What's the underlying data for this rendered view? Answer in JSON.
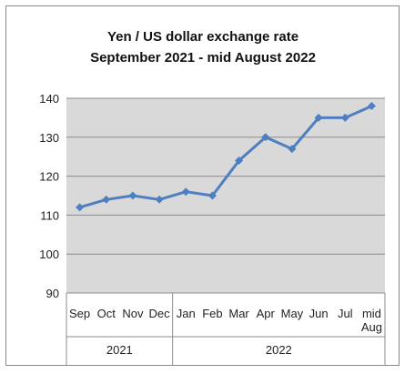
{
  "chart_data": {
    "type": "line",
    "title": "Yen / US dollar exchange rate",
    "subtitle": "September  2021 - mid August 2022",
    "categories": [
      {
        "label": "Sep",
        "label2": ""
      },
      {
        "label": "Oct",
        "label2": ""
      },
      {
        "label": "Nov",
        "label2": ""
      },
      {
        "label": "Dec",
        "label2": ""
      },
      {
        "label": "Jan",
        "label2": ""
      },
      {
        "label": "Feb",
        "label2": ""
      },
      {
        "label": "Mar",
        "label2": ""
      },
      {
        "label": "Apr",
        "label2": ""
      },
      {
        "label": "May",
        "label2": ""
      },
      {
        "label": "Jun",
        "label2": ""
      },
      {
        "label": "Jul",
        "label2": ""
      },
      {
        "label": "mid",
        "label2": "Aug"
      }
    ],
    "year_groups": [
      {
        "label": "2021",
        "start": 0,
        "end": 3
      },
      {
        "label": "2022",
        "start": 4,
        "end": 11
      }
    ],
    "series": [
      {
        "values": [
          112,
          114,
          115,
          114,
          116,
          115,
          124,
          130,
          127,
          135,
          135,
          138
        ],
        "color": "#4f7fc0"
      }
    ],
    "ylim": [
      90,
      140
    ],
    "yticks": [
      90,
      100,
      110,
      120,
      130,
      140
    ],
    "grid": true,
    "plot_background": "#d9d9d9",
    "xlabel": "",
    "ylabel": ""
  }
}
